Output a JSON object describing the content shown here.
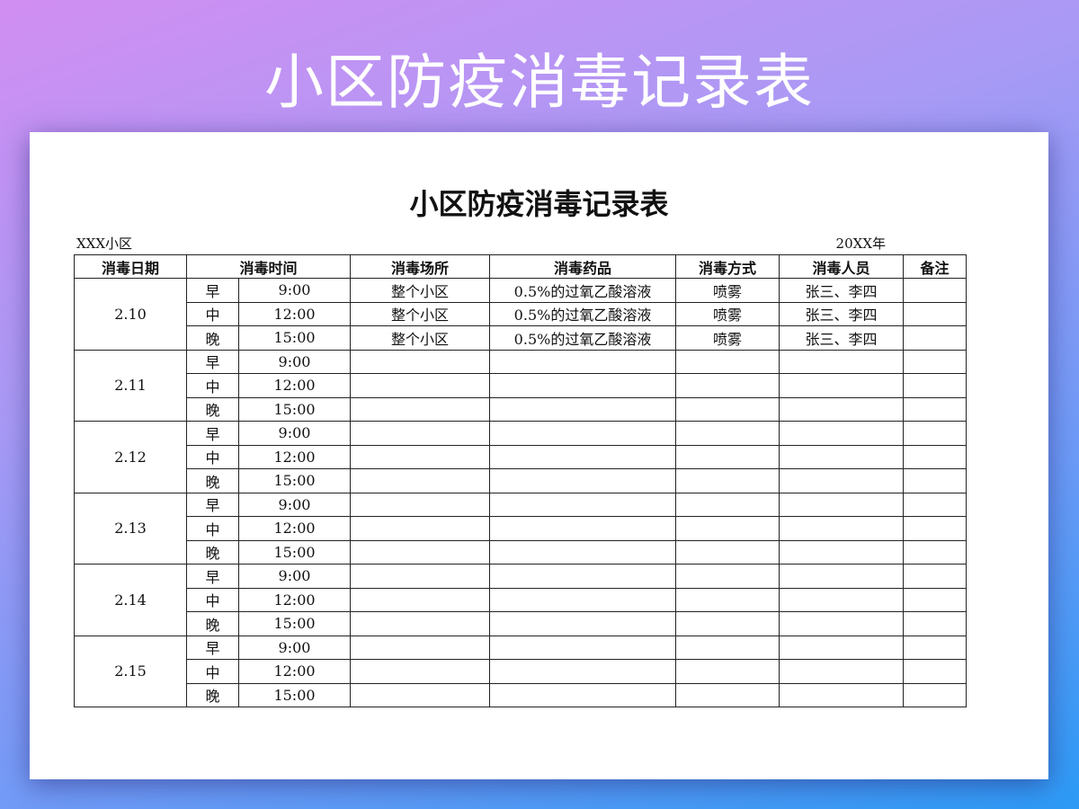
{
  "banner_title": "小区防疫消毒记录表",
  "document": {
    "title": "小区防疫消毒记录表",
    "community": "XXX小区",
    "year": "20XX年",
    "headers": [
      "消毒日期",
      "消毒时间",
      "消毒场所",
      "消毒药品",
      "消毒方式",
      "消毒人员",
      "备注"
    ],
    "days": [
      {
        "date": "2.10",
        "slots": [
          {
            "period": "早",
            "time": "9:00",
            "place": "整个小区",
            "agent": "0.5%的过氧乙酸溶液",
            "method": "喷雾",
            "staff": "张三、李四",
            "note": ""
          },
          {
            "period": "中",
            "time": "12:00",
            "place": "整个小区",
            "agent": "0.5%的过氧乙酸溶液",
            "method": "喷雾",
            "staff": "张三、李四",
            "note": ""
          },
          {
            "period": "晚",
            "time": "15:00",
            "place": "整个小区",
            "agent": "0.5%的过氧乙酸溶液",
            "method": "喷雾",
            "staff": "张三、李四",
            "note": ""
          }
        ]
      },
      {
        "date": "2.11",
        "slots": [
          {
            "period": "早",
            "time": "9:00"
          },
          {
            "period": "中",
            "time": "12:00"
          },
          {
            "period": "晚",
            "time": "15:00"
          }
        ]
      },
      {
        "date": "2.12",
        "slots": [
          {
            "period": "早",
            "time": "9:00"
          },
          {
            "period": "中",
            "time": "12:00"
          },
          {
            "period": "晚",
            "time": "15:00"
          }
        ]
      },
      {
        "date": "2.13",
        "slots": [
          {
            "period": "早",
            "time": "9:00"
          },
          {
            "period": "中",
            "time": "12:00"
          },
          {
            "period": "晚",
            "time": "15:00"
          }
        ]
      },
      {
        "date": "2.14",
        "slots": [
          {
            "period": "早",
            "time": "9:00"
          },
          {
            "period": "中",
            "time": "12:00"
          },
          {
            "period": "晚",
            "time": "15:00"
          }
        ]
      },
      {
        "date": "2.15",
        "slots": [
          {
            "period": "早",
            "time": "9:00"
          },
          {
            "period": "中",
            "time": "12:00"
          },
          {
            "period": "晚",
            "time": "15:00"
          }
        ]
      }
    ]
  }
}
